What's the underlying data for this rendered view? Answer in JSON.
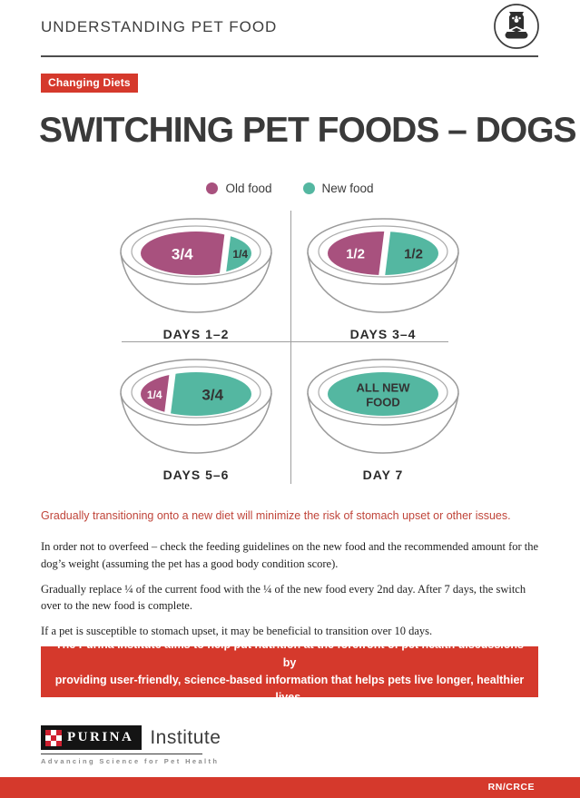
{
  "colors": {
    "old_food": "#a8517e",
    "new_food": "#54b7a1",
    "accent_red": "#d5392c",
    "highlight_red": "#c0453a"
  },
  "header": {
    "title": "UNDERSTANDING PET FOOD",
    "icon": "pet-food-bag-and-bowl"
  },
  "badge": {
    "label": "Changing Diets"
  },
  "page_title": "SWITCHING PET FOODS – DOGS",
  "legend": {
    "items": [
      {
        "label": "Old food",
        "color_key": "old_food"
      },
      {
        "label": "New food",
        "color_key": "new_food"
      }
    ]
  },
  "chart_data": {
    "type": "pie",
    "title": "Switching pet foods – dogs: bowl mix per day",
    "legend_position": "top",
    "series": [
      {
        "name": "DAYS 1–2",
        "slices": [
          {
            "label": "3/4",
            "food": "old",
            "value": 0.75
          },
          {
            "label": "1/4",
            "food": "new",
            "value": 0.25
          }
        ]
      },
      {
        "name": "DAYS 3–4",
        "slices": [
          {
            "label": "1/2",
            "food": "old",
            "value": 0.5
          },
          {
            "label": "1/2",
            "food": "new",
            "value": 0.5
          }
        ]
      },
      {
        "name": "DAYS 5–6",
        "slices": [
          {
            "label": "1/4",
            "food": "old",
            "value": 0.25
          },
          {
            "label": "3/4",
            "food": "new",
            "value": 0.75
          }
        ]
      },
      {
        "name": "DAY 7",
        "slices": [
          {
            "label": "ALL NEW FOOD",
            "food": "new",
            "value": 1.0
          }
        ]
      }
    ]
  },
  "diagram": {
    "bowls": [
      {
        "label": "DAYS 1–2",
        "portions": [
          {
            "food": "old",
            "value": 0.75,
            "text": "3/4"
          },
          {
            "food": "new",
            "value": 0.25,
            "text": "1/4"
          }
        ]
      },
      {
        "label": "DAYS 3–4",
        "portions": [
          {
            "food": "old",
            "value": 0.5,
            "text": "1/2"
          },
          {
            "food": "new",
            "value": 0.5,
            "text": "1/2"
          }
        ]
      },
      {
        "label": "DAYS 5–6",
        "portions": [
          {
            "food": "old",
            "value": 0.25,
            "text": "1/4"
          },
          {
            "food": "new",
            "value": 0.75,
            "text": "3/4"
          }
        ]
      },
      {
        "label": "DAY 7",
        "portions": [
          {
            "food": "new",
            "value": 1.0,
            "text": "ALL NEW FOOD",
            "text_lines": [
              "ALL NEW",
              "FOOD"
            ]
          }
        ]
      }
    ]
  },
  "highlight": "Gradually transitioning onto a new diet will minimize the risk of stomach upset or other issues.",
  "paragraphs": [
    "In order not to overfeed – check the feeding guidelines on the new food and the recommended amount for the dog’s weight (assuming the pet has a good body condition score).",
    "Gradually replace ¼ of the current food with the ¼ of the new food every 2nd day. After 7 days, the switch over to the new food is complete.",
    "If a pet is susceptible to stomach upset, it may be beneficial to transition over 10 days."
  ],
  "info_box": {
    "lines": [
      "The Purina Institute aims to help put nutrition at the forefront of pet health discussions by",
      "providing user-friendly, science-based information that helps pets live longer, healthier lives."
    ]
  },
  "footer": {
    "brand": "PURINA",
    "brand_suffix": "Institute",
    "tagline": "Advancing Science for Pet Health",
    "code": "RN/CRCE"
  }
}
